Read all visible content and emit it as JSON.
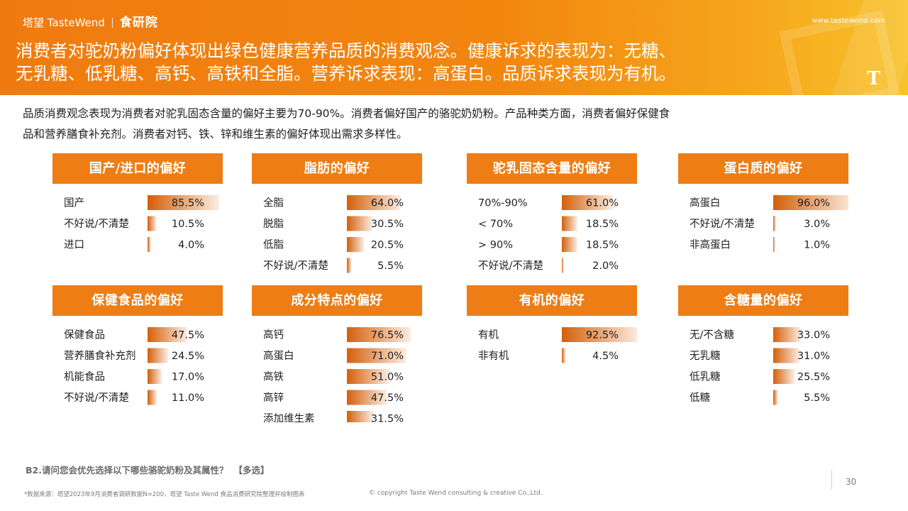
{
  "header": {
    "logo_brand": "塔望 TasteWend",
    "logo_institute": "食研院",
    "website": "www.tastewend.com",
    "headline": [
      "消费者对驼奶粉偏好体现出绿色健康营养品质的消费观念。健康诉求的表现为：无糖、",
      "无乳糖、低乳糖、高钙、高铁和全脂。营养诉求表现：高蛋白。品质诉求表现为有机。"
    ],
    "corner_mark": "T"
  },
  "summary": [
    "品质消费观念表现为消费者对驼乳固态含量的偏好主要为70-90%。消费者偏好国产的骆驼奶奶粉。产品种类方面，消费者偏好保健食",
    "品和营养膳食补充剂。消费者对钙、铁、锌和维生素的偏好体现出需求多样性。"
  ],
  "colors": {
    "accent": "#ed7d14",
    "bar_start": "#d45f0a",
    "bar_end": "#fbeee3"
  },
  "chart_data": [
    {
      "type": "bar",
      "title": "国产/进口的偏好",
      "unit": "%",
      "xlim": [
        0,
        100
      ],
      "categories": [
        "国产",
        "不好说/不清楚",
        "进口"
      ],
      "values": [
        85.5,
        10.5,
        4.0
      ]
    },
    {
      "type": "bar",
      "title": "脂肪的偏好",
      "unit": "%",
      "xlim": [
        0,
        100
      ],
      "categories": [
        "全脂",
        "脱脂",
        "低脂",
        "不好说/不清楚"
      ],
      "values": [
        64.0,
        30.5,
        20.5,
        5.5
      ]
    },
    {
      "type": "bar",
      "title": "驼乳固态含量的偏好",
      "unit": "%",
      "xlim": [
        0,
        100
      ],
      "categories": [
        "70%-90%",
        "< 70%",
        "> 90%",
        "不好说/不清楚"
      ],
      "values": [
        61.0,
        18.5,
        18.5,
        2.0
      ]
    },
    {
      "type": "bar",
      "title": "蛋白质的偏好",
      "unit": "%",
      "xlim": [
        0,
        100
      ],
      "categories": [
        "高蛋白",
        "不好说/不清楚",
        "非高蛋白"
      ],
      "values": [
        96.0,
        3.0,
        1.0
      ]
    },
    {
      "type": "bar",
      "title": "保健食品的偏好",
      "unit": "%",
      "xlim": [
        0,
        100
      ],
      "categories": [
        "保健食品",
        "营养膳食补充剂",
        "机能食品",
        "不好说/不清楚"
      ],
      "values": [
        47.5,
        24.5,
        17.0,
        11.0
      ]
    },
    {
      "type": "bar",
      "title": "成分特点的偏好",
      "unit": "%",
      "xlim": [
        0,
        100
      ],
      "categories": [
        "高钙",
        "高蛋白",
        "高铁",
        "高锌",
        "添加维生素"
      ],
      "values": [
        76.5,
        71.0,
        51.0,
        47.5,
        31.5
      ]
    },
    {
      "type": "bar",
      "title": "有机的偏好",
      "unit": "%",
      "xlim": [
        0,
        100
      ],
      "categories": [
        "有机",
        "非有机"
      ],
      "values": [
        92.5,
        4.5
      ]
    },
    {
      "type": "bar",
      "title": "含糖量的偏好",
      "unit": "%",
      "xlim": [
        0,
        100
      ],
      "categories": [
        "无/不含糖",
        "无乳糖",
        "低乳糖",
        "低糖"
      ],
      "values": [
        33.0,
        31.0,
        25.5,
        5.5
      ]
    }
  ],
  "footer": {
    "question": "B2.请问您会优先选择以下哪些骆驼奶粉及其属性？",
    "question_tag": "【多选】",
    "source": "*数据来源：塔望2023年9月消费者调研数据N=200，塔望 Taste Wend 食品消费研究院整理并绘制图表",
    "copyright": "© copyright Taste Wend consulting & creative Co.,Ltd.",
    "page_number": "30"
  }
}
